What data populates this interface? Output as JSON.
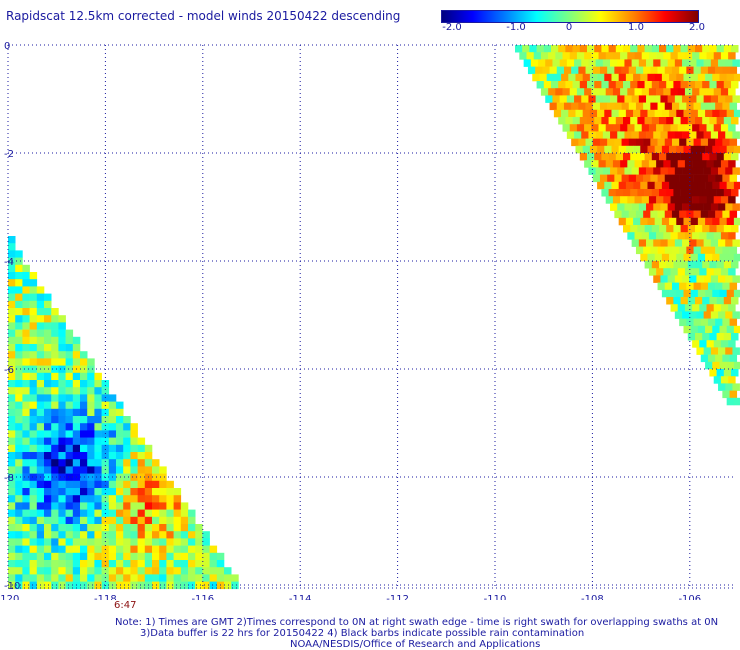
{
  "title": "Rapidscat 12.5km corrected - model winds 20150422 descending",
  "colorbar": {
    "ticks": [
      "-2.0",
      "-1.0",
      "0",
      "1.0",
      "2.0"
    ],
    "range": [
      -2.0,
      2.0
    ],
    "colors": [
      "#00007f",
      "#0000ff",
      "#0080ff",
      "#00ffff",
      "#7fff7f",
      "#ffff00",
      "#ff8000",
      "#ff0000",
      "#7f0000"
    ]
  },
  "map": {
    "lon_ticks": [
      "-120",
      "-118",
      "-116",
      "-114",
      "-112",
      "-110",
      "-108",
      "-106"
    ],
    "lat_ticks": [
      "0",
      "-2",
      "-4",
      "-6",
      "-8",
      "-10"
    ],
    "lon_range": [
      -120,
      -105
    ],
    "lat_range": [
      -10,
      0
    ],
    "grid_color": "#1a1aa0"
  },
  "swath_time": "6:47",
  "notes": [
    "Note: 1) Times are GMT 2)Times correspond to 0N at right swath edge - time is right swath for overlapping swaths at 0N",
    "3)Data buffer is 22 hrs for 20150422 4) Black barbs indicate possible rain contamination",
    "NOAA/NESDIS/Office of Research and Applications"
  ]
}
